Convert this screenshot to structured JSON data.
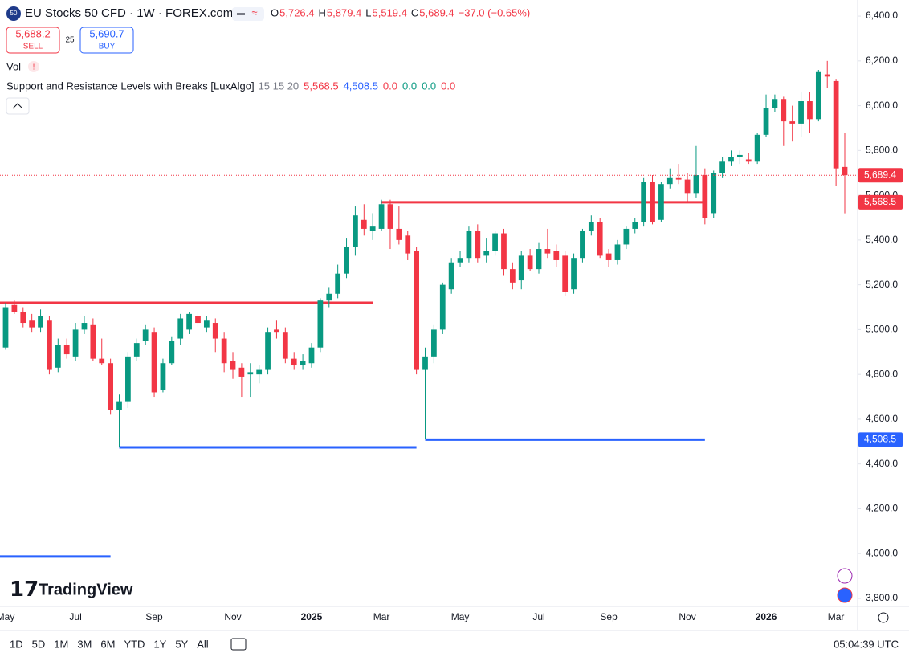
{
  "header": {
    "symbol_badge": "50",
    "title": "EU Stocks 50 CFD · 1W · FOREX.com",
    "ohlc": [
      {
        "label": "O",
        "value": "5,726.4"
      },
      {
        "label": "H",
        "value": "5,879.4"
      },
      {
        "label": "L",
        "value": "5,519.4"
      },
      {
        "label": "C",
        "value": "5,689.4"
      }
    ],
    "change": "−37.0 (−0.65%)",
    "sell": {
      "price": "5,688.2",
      "label": "SELL"
    },
    "spread": "25",
    "buy": {
      "price": "5,690.7",
      "label": "BUY"
    },
    "volume": "Vol",
    "indicator": {
      "name": "Support and Resistance Levels with Breaks [LuxAlgo]",
      "params": "15 15 20",
      "values": [
        {
          "text": "5,568.5",
          "color": "#f23645"
        },
        {
          "text": "4,508.5",
          "color": "#2962ff"
        },
        {
          "text": "0.0",
          "color": "#f23645"
        },
        {
          "text": "0.0",
          "color": "#089981"
        },
        {
          "text": "0.0",
          "color": "#089981"
        },
        {
          "text": "0.0",
          "color": "#f23645"
        }
      ]
    },
    "logo": "TradingView"
  },
  "toolbar": {
    "ranges": [
      "1D",
      "5D",
      "1M",
      "3M",
      "6M",
      "YTD",
      "1Y",
      "5Y",
      "All"
    ],
    "clock": "05:04:39 UTC"
  },
  "chart_data": {
    "type": "candlestick",
    "up_color": "#089981",
    "down_color": "#f23645",
    "categories": [
      "May",
      null,
      null,
      null,
      null,
      null,
      null,
      null,
      "Jul",
      null,
      null,
      null,
      null,
      null,
      null,
      null,
      null,
      "Sep",
      null,
      null,
      null,
      null,
      null,
      null,
      null,
      null,
      "Nov",
      null,
      null,
      null,
      null,
      null,
      null,
      null,
      null,
      "2025",
      null,
      null,
      null,
      null,
      null,
      null,
      null,
      "Mar",
      null,
      null,
      null,
      null,
      null,
      null,
      null,
      null,
      "May",
      null,
      null,
      null,
      null,
      null,
      null,
      null,
      null,
      "Jul",
      null,
      null,
      null,
      null,
      null,
      null,
      null,
      "Sep",
      null,
      null,
      null,
      null,
      null,
      null,
      null,
      null,
      "Nov",
      null,
      null,
      null,
      null,
      null,
      null,
      null,
      null,
      "2026",
      null,
      null,
      null,
      null,
      null,
      null,
      null,
      "Mar",
      null
    ],
    "open": [
      4920,
      5110,
      5080,
      5040,
      5010,
      5040,
      4830,
      4930,
      4880,
      5000,
      5020,
      4870,
      4850,
      4640,
      4680,
      4880,
      4950,
      4990,
      4730,
      4850,
      4960,
      5000,
      5060,
      5010,
      5030,
      4960,
      4860,
      4830,
      4800,
      4800,
      4820,
      5000,
      4990,
      4870,
      4840,
      4850,
      4920,
      5130,
      5160,
      5250,
      5370,
      5490,
      5440,
      5450,
      5560,
      5450,
      5420,
      5350,
      4820,
      4880,
      5000,
      5180,
      5300,
      5320,
      5440,
      5330,
      5350,
      5430,
      5270,
      5220,
      5330,
      5270,
      5360,
      5350,
      5330,
      5180,
      5320,
      5440,
      5480,
      5340,
      5310,
      5380,
      5450,
      5480,
      5660,
      5490,
      5650,
      5680,
      5670,
      5610,
      5690,
      5520,
      5700,
      5750,
      5770,
      5760,
      5750,
      5870,
      5990,
      6030,
      5930,
      5920,
      6020,
      5940,
      6140,
      6110,
      5726.4
    ],
    "high": [
      5120,
      5130,
      5100,
      5070,
      5090,
      5060,
      4960,
      4960,
      5030,
      5060,
      5050,
      4960,
      4870,
      4710,
      4900,
      4960,
      5020,
      5010,
      4870,
      4970,
      5070,
      5080,
      5080,
      5060,
      5050,
      4990,
      4900,
      4850,
      4850,
      4840,
      5010,
      5040,
      5010,
      4900,
      4890,
      4940,
      5140,
      5190,
      5290,
      5410,
      5550,
      5560,
      5520,
      5580,
      5580,
      5550,
      5440,
      5370,
      4920,
      5020,
      5210,
      5320,
      5350,
      5460,
      5470,
      5410,
      5440,
      5450,
      5300,
      5350,
      5360,
      5390,
      5450,
      5380,
      5350,
      5340,
      5450,
      5510,
      5500,
      5360,
      5400,
      5460,
      5500,
      5680,
      5690,
      5660,
      5720,
      5740,
      5700,
      5820,
      5720,
      5710,
      5770,
      5800,
      5800,
      5790,
      5880,
      6050,
      6050,
      6040,
      6000,
      6060,
      6060,
      6160,
      6200,
      6120,
      5879.4
    ],
    "low": [
      4910,
      5070,
      5010,
      4990,
      4990,
      4800,
      4810,
      4870,
      4860,
      4980,
      4860,
      4840,
      4620,
      4474,
      4650,
      4860,
      4930,
      4700,
      4720,
      4840,
      4930,
      4980,
      5010,
      4990,
      4900,
      4810,
      4780,
      4700,
      4700,
      4760,
      4800,
      4960,
      4850,
      4820,
      4820,
      4830,
      4900,
      5100,
      5140,
      5230,
      5330,
      5420,
      5400,
      5440,
      5360,
      5380,
      5310,
      4800,
      4510,
      4850,
      4980,
      5160,
      5280,
      5300,
      5300,
      5300,
      5330,
      5240,
      5180,
      5180,
      5260,
      5250,
      5320,
      5280,
      5150,
      5160,
      5300,
      5420,
      5320,
      5280,
      5290,
      5360,
      5430,
      5460,
      5470,
      5480,
      5630,
      5650,
      5570,
      5590,
      5470,
      5500,
      5680,
      5730,
      5740,
      5740,
      5740,
      5860,
      5970,
      5820,
      5840,
      5860,
      5880,
      5930,
      6080,
      5640,
      5519.4
    ],
    "close": [
      5100,
      5080,
      5030,
      5010,
      5060,
      4820,
      4930,
      4890,
      5000,
      5030,
      4870,
      4850,
      4640,
      4680,
      4880,
      4940,
      5000,
      4720,
      4850,
      4950,
      5050,
      5070,
      5030,
      5040,
      4960,
      4850,
      4820,
      4790,
      4810,
      4820,
      4990,
      4990,
      4870,
      4840,
      4860,
      4920,
      5130,
      5160,
      5250,
      5370,
      5510,
      5450,
      5460,
      5560,
      5450,
      5400,
      5340,
      4820,
      4880,
      5000,
      5200,
      5300,
      5320,
      5440,
      5320,
      5350,
      5430,
      5270,
      5210,
      5330,
      5270,
      5360,
      5340,
      5310,
      5170,
      5320,
      5440,
      5480,
      5330,
      5310,
      5380,
      5450,
      5480,
      5660,
      5480,
      5650,
      5680,
      5670,
      5610,
      5690,
      5500,
      5700,
      5750,
      5770,
      5780,
      5750,
      5870,
      5990,
      6030,
      5930,
      5920,
      6020,
      5940,
      6150,
      6130,
      5720,
      5689.4
    ],
    "levels": [
      {
        "value": 5120,
        "from": 0,
        "to": 42,
        "color": "#f23645"
      },
      {
        "value": 5568.5,
        "from": 43,
        "to": 80,
        "color": "#f23645"
      },
      {
        "value": 4474,
        "from": 13,
        "to": 47,
        "color": "#2962ff"
      },
      {
        "value": 4508.5,
        "from": 48,
        "to": 80,
        "color": "#2962ff"
      },
      {
        "value": 3987,
        "from": 0,
        "to": 12,
        "color": "#2962ff"
      }
    ],
    "price_tags": [
      {
        "value": 5689.4,
        "label": "5,689.4",
        "color": "#f23645"
      },
      {
        "value": 5568.5,
        "label": "5,568.5",
        "color": "#f23645"
      },
      {
        "value": 4508.5,
        "label": "4,508.5",
        "color": "#2962ff"
      }
    ],
    "ylim": [
      3764,
      6472
    ],
    "yticks": [
      {
        "value": 3800,
        "label": "3,800.0"
      },
      {
        "value": 4000,
        "label": "4,000.0"
      },
      {
        "value": 4200,
        "label": "4,200.0"
      },
      {
        "value": 4400,
        "label": "4,400.0"
      },
      {
        "value": 4600,
        "label": "4,600.0"
      },
      {
        "value": 4800,
        "label": "4,800.0"
      },
      {
        "value": 5000,
        "label": "5,000.0"
      },
      {
        "value": 5200,
        "label": "5,200.0"
      },
      {
        "value": 5400,
        "label": "5,400.0"
      },
      {
        "value": 5600,
        "label": "5,600.0"
      },
      {
        "value": 5800,
        "label": "5,800.0"
      },
      {
        "value": 6000,
        "label": "6,000.0"
      },
      {
        "value": 6200,
        "label": "6,200.0"
      },
      {
        "value": 6400,
        "label": "6,400.0"
      }
    ]
  }
}
